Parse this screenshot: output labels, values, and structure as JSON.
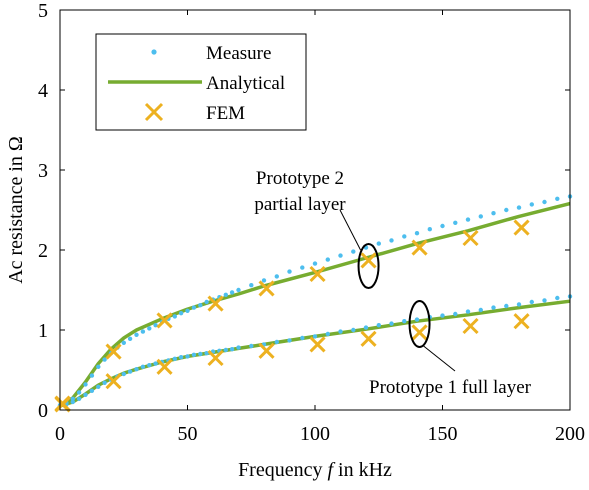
{
  "chart_data": {
    "type": "line",
    "xlabel_prefix": "Frequency ",
    "xlabel_var": "f",
    "xlabel_suffix": " in kHz",
    "ylabel": "Ac resistance in Ω",
    "xlim": [
      0,
      200
    ],
    "ylim": [
      0,
      5
    ],
    "x_ticks": [
      0,
      50,
      100,
      150,
      200
    ],
    "y_ticks": [
      0,
      1,
      2,
      3,
      4,
      5
    ],
    "grid": false,
    "legend_position": "top-left",
    "legend": [
      {
        "label": "Measure",
        "marker": "dot",
        "color": "#4dbeee"
      },
      {
        "label": "Analytical",
        "marker": "line",
        "color": "#77ac30"
      },
      {
        "label": "FEM",
        "marker": "x",
        "color": "#edb120"
      }
    ],
    "series": [
      {
        "group": "prototype-2",
        "kind": "analytical",
        "color": "#77ac30",
        "x": [
          0,
          5,
          10,
          15,
          20,
          25,
          30,
          40,
          50,
          60,
          70,
          80,
          100,
          120,
          140,
          160,
          180,
          200
        ],
        "y": [
          0.06,
          0.15,
          0.35,
          0.58,
          0.76,
          0.9,
          1.0,
          1.14,
          1.26,
          1.36,
          1.45,
          1.55,
          1.72,
          1.9,
          2.08,
          2.24,
          2.42,
          2.58
        ]
      },
      {
        "group": "prototype-2",
        "kind": "measure",
        "color": "#4dbeee",
        "x": [
          0,
          2.5,
          5,
          7.5,
          10,
          12.5,
          15,
          17.5,
          20,
          22.5,
          25,
          27.5,
          30,
          32.5,
          35,
          37.5,
          40,
          42.5,
          45,
          47.5,
          50,
          52.5,
          55,
          57.5,
          60,
          62.5,
          65,
          67.5,
          70,
          75,
          80,
          85,
          90,
          95,
          100,
          105,
          110,
          115,
          120,
          125,
          130,
          135,
          140,
          145,
          150,
          155,
          160,
          165,
          170,
          175,
          180,
          185,
          190,
          195,
          200
        ],
        "y": [
          0.06,
          0.09,
          0.14,
          0.22,
          0.32,
          0.43,
          0.54,
          0.63,
          0.71,
          0.78,
          0.84,
          0.89,
          0.94,
          0.98,
          1.02,
          1.06,
          1.1,
          1.14,
          1.17,
          1.21,
          1.24,
          1.28,
          1.31,
          1.35,
          1.38,
          1.41,
          1.44,
          1.47,
          1.5,
          1.56,
          1.62,
          1.67,
          1.73,
          1.78,
          1.83,
          1.88,
          1.93,
          1.98,
          2.03,
          2.08,
          2.12,
          2.17,
          2.21,
          2.26,
          2.3,
          2.34,
          2.38,
          2.42,
          2.46,
          2.5,
          2.53,
          2.57,
          2.6,
          2.64,
          2.67
        ]
      },
      {
        "group": "prototype-2",
        "kind": "fem",
        "color": "#edb120",
        "x": [
          1,
          21,
          41,
          61,
          81,
          101,
          121,
          141,
          161,
          181
        ],
        "y": [
          0.08,
          0.73,
          1.12,
          1.33,
          1.52,
          1.7,
          1.87,
          2.03,
          2.15,
          2.28
        ]
      },
      {
        "group": "prototype-1",
        "kind": "analytical",
        "color": "#77ac30",
        "x": [
          0,
          5,
          10,
          15,
          20,
          25,
          30,
          40,
          50,
          60,
          70,
          80,
          100,
          120,
          140,
          160,
          180,
          200
        ],
        "y": [
          0.05,
          0.1,
          0.2,
          0.31,
          0.39,
          0.46,
          0.51,
          0.6,
          0.67,
          0.72,
          0.77,
          0.82,
          0.92,
          1.01,
          1.11,
          1.19,
          1.28,
          1.36
        ]
      },
      {
        "group": "prototype-1",
        "kind": "measure",
        "color": "#4dbeee",
        "x": [
          0,
          2.5,
          5,
          7.5,
          10,
          12.5,
          15,
          17.5,
          20,
          22.5,
          25,
          27.5,
          30,
          32.5,
          35,
          37.5,
          40,
          42.5,
          45,
          47.5,
          50,
          52.5,
          55,
          57.5,
          60,
          62.5,
          65,
          67.5,
          70,
          75,
          80,
          85,
          90,
          95,
          100,
          105,
          110,
          115,
          120,
          125,
          130,
          135,
          140,
          145,
          150,
          155,
          160,
          165,
          170,
          175,
          180,
          185,
          190,
          195,
          200
        ],
        "y": [
          0.05,
          0.07,
          0.1,
          0.14,
          0.19,
          0.24,
          0.29,
          0.34,
          0.38,
          0.42,
          0.45,
          0.48,
          0.51,
          0.54,
          0.56,
          0.58,
          0.6,
          0.62,
          0.64,
          0.66,
          0.67,
          0.69,
          0.7,
          0.71,
          0.73,
          0.74,
          0.75,
          0.76,
          0.78,
          0.8,
          0.82,
          0.85,
          0.87,
          0.9,
          0.92,
          0.95,
          0.98,
          1.0,
          1.03,
          1.06,
          1.08,
          1.11,
          1.13,
          1.16,
          1.18,
          1.2,
          1.23,
          1.25,
          1.28,
          1.3,
          1.32,
          1.35,
          1.37,
          1.4,
          1.42
        ]
      },
      {
        "group": "prototype-1",
        "kind": "fem",
        "color": "#edb120",
        "x": [
          1,
          21,
          41,
          61,
          81,
          101,
          121,
          141,
          161,
          181
        ],
        "y": [
          0.07,
          0.36,
          0.54,
          0.65,
          0.74,
          0.82,
          0.89,
          0.97,
          1.05,
          1.11
        ]
      }
    ],
    "annotations": [
      {
        "lines": [
          "Prototype 2",
          "partial layer"
        ],
        "ellipse_center": [
          121,
          1.9
        ]
      },
      {
        "lines": [
          "Prototype 1 full layer"
        ],
        "ellipse_center": [
          141,
          1.05
        ]
      }
    ]
  }
}
